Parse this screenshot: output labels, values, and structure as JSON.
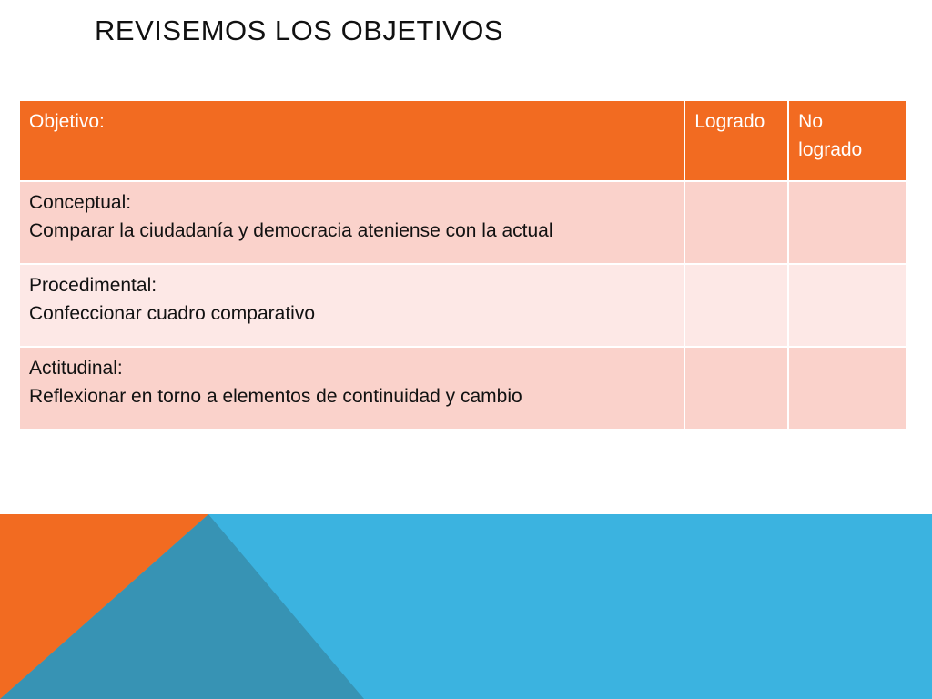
{
  "slide": {
    "title": "REVISEMOS LOS OBJETIVOS"
  },
  "table": {
    "headers": {
      "objective": "Objetivo:",
      "achieved": "Logrado",
      "not_achieved_line1": "No",
      "not_achieved_line2": "logrado"
    },
    "rows": [
      {
        "category": "Conceptual:",
        "description": "Comparar la ciudadanía y democracia ateniense con la actual",
        "achieved": "",
        "not_achieved": ""
      },
      {
        "category": "Procedimental:",
        "description": "Confeccionar cuadro comparativo",
        "achieved": "",
        "not_achieved": ""
      },
      {
        "category": "Actitudinal:",
        "description": "Reflexionar en torno a elementos de continuidad y cambio",
        "achieved": "",
        "not_achieved": ""
      }
    ]
  },
  "colors": {
    "accent_orange": "#f26b21",
    "row_dark": "#fad2cb",
    "row_light": "#fde8e6",
    "decor_blue": "#3bb3e0",
    "decor_teal": "#3793b4"
  }
}
